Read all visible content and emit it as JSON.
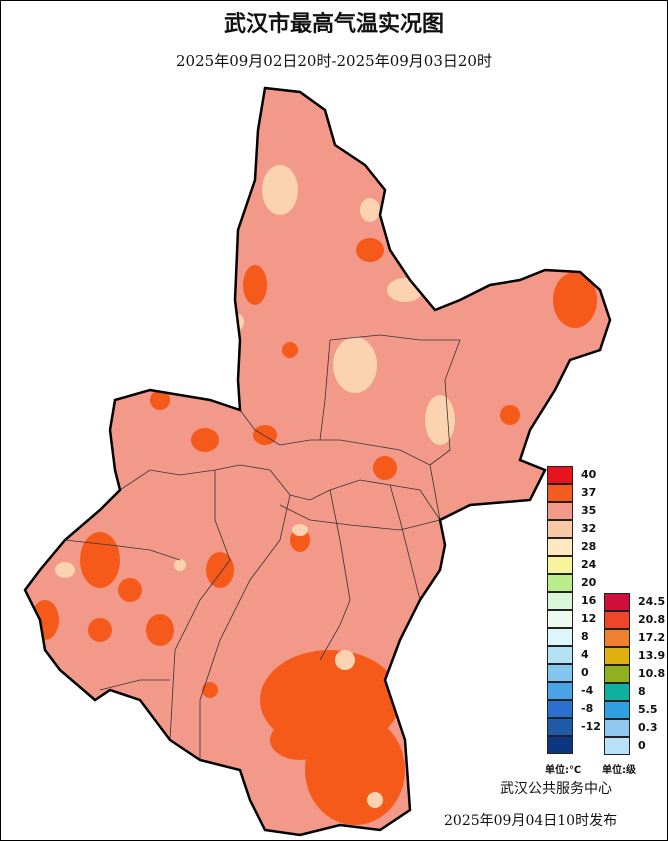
{
  "header": {
    "title": "武汉市最高气温实况图",
    "subtitle": "2025年09月02日20时-2025年09月03日20时"
  },
  "map": {
    "colors": {
      "base": "#f3998a",
      "hot": "#f65a1a",
      "cool": "#fbd3b0",
      "boundary": "#000000"
    }
  },
  "temperature_legend": {
    "unit": "单位:℃",
    "items": [
      {
        "label": "40",
        "color": "#e8141c"
      },
      {
        "label": "37",
        "color": "#f55a1e"
      },
      {
        "label": "35",
        "color": "#f3998a"
      },
      {
        "label": "32",
        "color": "#f9c9a6"
      },
      {
        "label": "28",
        "color": "#fde8c0"
      },
      {
        "label": "24",
        "color": "#f7f59b"
      },
      {
        "label": "20",
        "color": "#b8ec8c"
      },
      {
        "label": "16",
        "color": "#d8f6d8"
      },
      {
        "label": "12",
        "color": "#eefaee"
      },
      {
        "label": "8",
        "color": "#ddf6fb"
      },
      {
        "label": "4",
        "color": "#b3e0f3"
      },
      {
        "label": "0",
        "color": "#84c6ef"
      },
      {
        "label": "-4",
        "color": "#4aa3e6"
      },
      {
        "label": "-8",
        "color": "#2b6fcf"
      },
      {
        "label": "-12",
        "color": "#1f5aa8"
      },
      {
        "label": "",
        "color": "#0c3582"
      }
    ]
  },
  "wind_legend": {
    "unit": "单位:级",
    "items": [
      {
        "label": "24.5",
        "color": "#d0103a"
      },
      {
        "label": "20.8",
        "color": "#f0452a"
      },
      {
        "label": "17.2",
        "color": "#f08030"
      },
      {
        "label": "13.9",
        "color": "#e0b010"
      },
      {
        "label": "10.8",
        "color": "#90b020"
      },
      {
        "label": "8",
        "color": "#10b0a0"
      },
      {
        "label": "5.5",
        "color": "#30a0e0"
      },
      {
        "label": "0.3",
        "color": "#90c8f0"
      },
      {
        "label": "0",
        "color": "#b8e0f8"
      }
    ]
  },
  "footer": {
    "organization": "武汉公共服务中心",
    "published": "2025年09月04日10时发布"
  }
}
